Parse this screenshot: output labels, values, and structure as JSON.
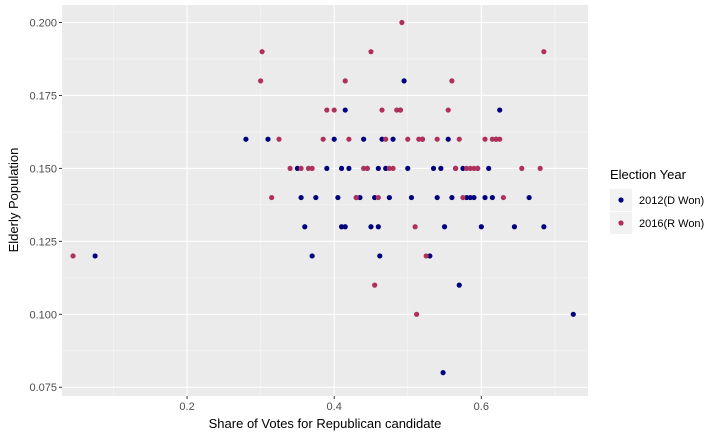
{
  "chart_data": {
    "type": "scatter",
    "title": "",
    "xlabel": "Share of Votes for Republican candidate",
    "ylabel": "Elderly Population",
    "xlim": [
      0.03,
      0.745
    ],
    "ylim": [
      0.072,
      0.206
    ],
    "xticks": [
      0.2,
      0.4,
      0.6
    ],
    "xtick_labels": [
      "0.2",
      "0.4",
      "0.6"
    ],
    "yticks": [
      0.075,
      0.1,
      0.125,
      0.15,
      0.175,
      0.2
    ],
    "ytick_labels": [
      "0.075",
      "0.100",
      "0.125",
      "0.150",
      "0.175",
      "0.200"
    ],
    "grid": true,
    "background": "#ebebeb",
    "legend_position": "right",
    "legend_title": "Election Year",
    "series": [
      {
        "name": "2012(D Won)",
        "color": "#00007f",
        "points": [
          [
            0.075,
            0.12
          ],
          [
            0.28,
            0.16
          ],
          [
            0.31,
            0.16
          ],
          [
            0.35,
            0.15
          ],
          [
            0.355,
            0.14
          ],
          [
            0.36,
            0.13
          ],
          [
            0.37,
            0.12
          ],
          [
            0.375,
            0.14
          ],
          [
            0.39,
            0.15
          ],
          [
            0.4,
            0.16
          ],
          [
            0.405,
            0.14
          ],
          [
            0.41,
            0.15
          ],
          [
            0.41,
            0.13
          ],
          [
            0.415,
            0.13
          ],
          [
            0.415,
            0.17
          ],
          [
            0.42,
            0.15
          ],
          [
            0.43,
            0.14
          ],
          [
            0.435,
            0.14
          ],
          [
            0.44,
            0.16
          ],
          [
            0.445,
            0.15
          ],
          [
            0.45,
            0.13
          ],
          [
            0.455,
            0.14
          ],
          [
            0.46,
            0.15
          ],
          [
            0.46,
            0.13
          ],
          [
            0.462,
            0.12
          ],
          [
            0.465,
            0.16
          ],
          [
            0.47,
            0.15
          ],
          [
            0.475,
            0.14
          ],
          [
            0.48,
            0.16
          ],
          [
            0.49,
            0.17
          ],
          [
            0.495,
            0.18
          ],
          [
            0.5,
            0.15
          ],
          [
            0.505,
            0.14
          ],
          [
            0.52,
            0.16
          ],
          [
            0.53,
            0.12
          ],
          [
            0.535,
            0.15
          ],
          [
            0.54,
            0.14
          ],
          [
            0.545,
            0.15
          ],
          [
            0.548,
            0.08
          ],
          [
            0.55,
            0.13
          ],
          [
            0.555,
            0.16
          ],
          [
            0.56,
            0.14
          ],
          [
            0.565,
            0.15
          ],
          [
            0.57,
            0.11
          ],
          [
            0.575,
            0.15
          ],
          [
            0.58,
            0.14
          ],
          [
            0.585,
            0.14
          ],
          [
            0.59,
            0.14
          ],
          [
            0.595,
            0.15
          ],
          [
            0.6,
            0.13
          ],
          [
            0.605,
            0.14
          ],
          [
            0.61,
            0.15
          ],
          [
            0.615,
            0.14
          ],
          [
            0.62,
            0.16
          ],
          [
            0.625,
            0.17
          ],
          [
            0.645,
            0.13
          ],
          [
            0.665,
            0.14
          ],
          [
            0.685,
            0.13
          ],
          [
            0.725,
            0.1
          ]
        ]
      },
      {
        "name": "2016(R Won)",
        "color": "#b0305c",
        "points": [
          [
            0.045,
            0.12
          ],
          [
            0.3,
            0.18
          ],
          [
            0.302,
            0.19
          ],
          [
            0.315,
            0.14
          ],
          [
            0.325,
            0.16
          ],
          [
            0.34,
            0.15
          ],
          [
            0.355,
            0.15
          ],
          [
            0.365,
            0.15
          ],
          [
            0.37,
            0.15
          ],
          [
            0.385,
            0.16
          ],
          [
            0.39,
            0.17
          ],
          [
            0.4,
            0.17
          ],
          [
            0.415,
            0.18
          ],
          [
            0.42,
            0.16
          ],
          [
            0.43,
            0.14
          ],
          [
            0.44,
            0.15
          ],
          [
            0.445,
            0.15
          ],
          [
            0.45,
            0.19
          ],
          [
            0.455,
            0.11
          ],
          [
            0.46,
            0.14
          ],
          [
            0.465,
            0.17
          ],
          [
            0.47,
            0.16
          ],
          [
            0.475,
            0.15
          ],
          [
            0.48,
            0.15
          ],
          [
            0.485,
            0.17
          ],
          [
            0.49,
            0.17
          ],
          [
            0.492,
            0.2
          ],
          [
            0.5,
            0.16
          ],
          [
            0.51,
            0.13
          ],
          [
            0.512,
            0.1
          ],
          [
            0.515,
            0.16
          ],
          [
            0.52,
            0.16
          ],
          [
            0.525,
            0.12
          ],
          [
            0.54,
            0.16
          ],
          [
            0.555,
            0.17
          ],
          [
            0.56,
            0.18
          ],
          [
            0.565,
            0.15
          ],
          [
            0.57,
            0.16
          ],
          [
            0.575,
            0.14
          ],
          [
            0.58,
            0.15
          ],
          [
            0.585,
            0.15
          ],
          [
            0.59,
            0.15
          ],
          [
            0.595,
            0.15
          ],
          [
            0.605,
            0.16
          ],
          [
            0.615,
            0.16
          ],
          [
            0.62,
            0.16
          ],
          [
            0.625,
            0.16
          ],
          [
            0.63,
            0.14
          ],
          [
            0.655,
            0.15
          ],
          [
            0.68,
            0.15
          ],
          [
            0.685,
            0.19
          ]
        ]
      }
    ]
  }
}
